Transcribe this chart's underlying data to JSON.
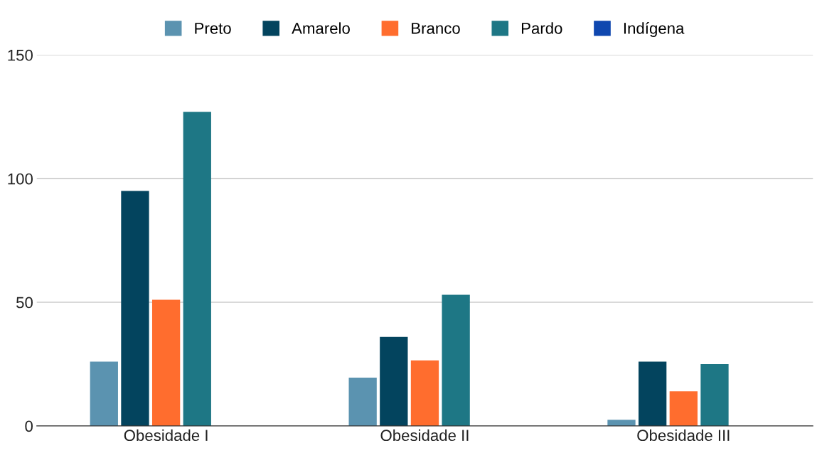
{
  "chart_data": {
    "type": "bar",
    "categories": [
      "Obesidade I",
      "Obesidade II",
      "Obesidade III"
    ],
    "series": [
      {
        "name": "Preto",
        "color": "#5b93b0",
        "values": [
          26,
          19.5,
          2.5
        ]
      },
      {
        "name": "Amarelo",
        "color": "#03445e",
        "values": [
          95,
          36,
          26
        ]
      },
      {
        "name": "Branco",
        "color": "#ff6d2e",
        "values": [
          51,
          26.5,
          14
        ]
      },
      {
        "name": "Pardo",
        "color": "#1e7785",
        "values": [
          127,
          53,
          25
        ]
      },
      {
        "name": "Indígena",
        "color": "#0f47af",
        "values": [
          0,
          0,
          0
        ]
      }
    ],
    "ylim": [
      0,
      150
    ],
    "yticks": [
      0,
      50,
      100,
      150
    ],
    "grid": "y",
    "legend": "top"
  }
}
